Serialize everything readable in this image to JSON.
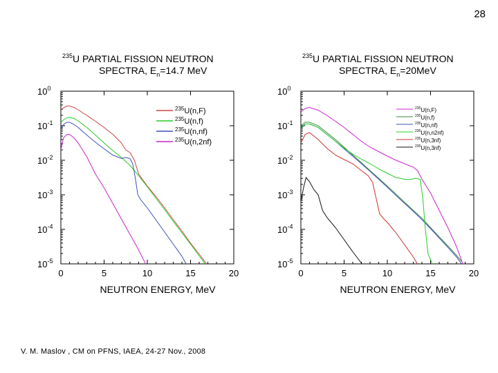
{
  "slide": {
    "number": "28"
  },
  "footer": {
    "citation": "V. M. Maslov ,   CM on PFNS, IAEA, 24-27 Nov., 2008"
  },
  "chart_data": [
    {
      "type": "line",
      "title_isotope": "235",
      "title_line1": "U PARTIAL FISSION NEUTRON",
      "title_line2": "SPECTRA,  E",
      "title_energy_sub": "n",
      "title_energy_value": "=14.7 MeV",
      "xlabel": "NEUTRON ENERGY, MeV",
      "ylabel": "",
      "x_ticks": [
        "0",
        "5",
        "10",
        "15",
        "20"
      ],
      "y_tick_exponents": [
        "0",
        "-1",
        "-2",
        "-3",
        "-4",
        "-5"
      ],
      "xlim": [
        0,
        20
      ],
      "ylim_log10": [
        -5,
        0
      ],
      "legend_position": "top-right",
      "series": [
        {
          "name": "235U(n,F)",
          "label_iso": "235",
          "label_rest": "U(n,F)",
          "color": "#d04040",
          "points": [
            [
              0,
              -0.55
            ],
            [
              0.3,
              -0.48
            ],
            [
              0.7,
              -0.43
            ],
            [
              1,
              -0.43
            ],
            [
              1.5,
              -0.47
            ],
            [
              2,
              -0.54
            ],
            [
              3,
              -0.7
            ],
            [
              4,
              -0.87
            ],
            [
              5,
              -1.05
            ],
            [
              6,
              -1.25
            ],
            [
              7,
              -1.5
            ],
            [
              7.5,
              -1.7
            ],
            [
              8,
              -1.78
            ],
            [
              8.5,
              -2.0
            ],
            [
              9,
              -2.4
            ],
            [
              10,
              -2.75
            ],
            [
              11,
              -3.05
            ],
            [
              12,
              -3.38
            ],
            [
              13,
              -3.72
            ],
            [
              14,
              -4.05
            ],
            [
              15,
              -4.4
            ],
            [
              16,
              -4.72
            ],
            [
              17,
              -5.05
            ]
          ]
        },
        {
          "name": "235U(n,f)",
          "label_iso": "235",
          "label_rest": "U(n,f)",
          "color": "#22cc22",
          "points": [
            [
              0,
              -0.9
            ],
            [
              0.3,
              -0.83
            ],
            [
              0.7,
              -0.77
            ],
            [
              1,
              -0.76
            ],
            [
              1.5,
              -0.79
            ],
            [
              2,
              -0.86
            ],
            [
              3,
              -1.05
            ],
            [
              4,
              -1.27
            ],
            [
              5,
              -1.5
            ],
            [
              6,
              -1.72
            ],
            [
              7,
              -1.92
            ],
            [
              8,
              -2.15
            ],
            [
              9,
              -2.45
            ],
            [
              10,
              -2.77
            ],
            [
              11,
              -3.1
            ],
            [
              12,
              -3.43
            ],
            [
              13,
              -3.77
            ],
            [
              14,
              -4.1
            ],
            [
              15,
              -4.43
            ],
            [
              16,
              -4.77
            ],
            [
              17,
              -5.1
            ]
          ]
        },
        {
          "name": "235U(n,nf)",
          "label_iso": "235",
          "label_rest": "U(n,nf)",
          "color": "#3a4fb8",
          "points": [
            [
              0,
              -1.1
            ],
            [
              0.3,
              -0.97
            ],
            [
              0.7,
              -0.9
            ],
            [
              1,
              -0.9
            ],
            [
              1.5,
              -0.96
            ],
            [
              2,
              -1.05
            ],
            [
              3,
              -1.27
            ],
            [
              4,
              -1.48
            ],
            [
              5,
              -1.67
            ],
            [
              6,
              -1.85
            ],
            [
              7,
              -1.95
            ],
            [
              7.5,
              -1.92
            ],
            [
              8,
              -1.95
            ],
            [
              8.3,
              -2.1
            ],
            [
              8.6,
              -2.5
            ],
            [
              8.9,
              -3.0
            ],
            [
              9.2,
              -3.13
            ],
            [
              10,
              -3.38
            ],
            [
              11,
              -3.73
            ],
            [
              12,
              -4.08
            ],
            [
              13,
              -4.43
            ],
            [
              14,
              -4.78
            ],
            [
              14.6,
              -5.05
            ]
          ]
        },
        {
          "name": "235U(n,2nf)",
          "label_iso": "235",
          "label_rest": "U(n,2nf)",
          "color": "#cc22cc",
          "points": [
            [
              0,
              -1.7
            ],
            [
              0.3,
              -1.35
            ],
            [
              0.7,
              -1.25
            ],
            [
              1,
              -1.25
            ],
            [
              1.5,
              -1.35
            ],
            [
              2,
              -1.5
            ],
            [
              2.5,
              -1.7
            ],
            [
              3,
              -1.9
            ],
            [
              3.5,
              -2.15
            ],
            [
              4,
              -2.4
            ],
            [
              5,
              -2.8
            ],
            [
              6,
              -3.25
            ],
            [
              7,
              -3.7
            ],
            [
              8,
              -4.15
            ],
            [
              9,
              -4.6
            ],
            [
              9.9,
              -5.05
            ]
          ]
        }
      ]
    },
    {
      "type": "line",
      "title_isotope": "235",
      "title_line1": "U PARTIAL FISSION NEUTRON",
      "title_line2": "SPECTRA,  E",
      "title_energy_sub": "n",
      "title_energy_value": "=20MeV",
      "xlabel": "NEUTRON ENERGY, MeV",
      "ylabel": "",
      "x_ticks": [
        "0",
        "5",
        "10",
        "15",
        "20"
      ],
      "y_tick_exponents": [
        "0",
        "-1",
        "-2",
        "-3",
        "-4",
        "-5"
      ],
      "xlim": [
        0,
        20
      ],
      "ylim_log10": [
        -5,
        0
      ],
      "legend_position": "top-right",
      "series": [
        {
          "name": "235U(n,F)",
          "label_iso": "235",
          "label_rest": "U(n,F)",
          "color": "#cc22cc",
          "points": [
            [
              0,
              -0.6
            ],
            [
              0.5,
              -0.5
            ],
            [
              1,
              -0.47
            ],
            [
              2,
              -0.55
            ],
            [
              3,
              -0.7
            ],
            [
              4,
              -0.87
            ],
            [
              5,
              -1.05
            ],
            [
              6,
              -1.25
            ],
            [
              7,
              -1.45
            ],
            [
              8,
              -1.62
            ],
            [
              9,
              -1.75
            ],
            [
              10,
              -1.88
            ],
            [
              11,
              -2.0
            ],
            [
              12,
              -2.1
            ],
            [
              13,
              -2.2
            ],
            [
              13.5,
              -2.3
            ],
            [
              14,
              -2.55
            ],
            [
              15,
              -2.95
            ],
            [
              16,
              -3.45
            ],
            [
              17,
              -3.95
            ],
            [
              18,
              -4.5
            ],
            [
              18.8,
              -5.05
            ]
          ]
        },
        {
          "name": "235U(n,f)",
          "label_iso": "235",
          "label_rest": "U(n,f)",
          "color": "#3a8a3a",
          "points": [
            [
              0,
              -1.0
            ],
            [
              0.5,
              -0.9
            ],
            [
              1,
              -0.9
            ],
            [
              2,
              -1.0
            ],
            [
              3,
              -1.2
            ],
            [
              4,
              -1.4
            ],
            [
              5,
              -1.62
            ],
            [
              6,
              -1.85
            ],
            [
              7,
              -2.07
            ],
            [
              8,
              -2.3
            ],
            [
              9,
              -2.52
            ],
            [
              10,
              -2.75
            ],
            [
              11,
              -2.98
            ],
            [
              12,
              -3.22
            ],
            [
              13,
              -3.45
            ],
            [
              14,
              -3.68
            ],
            [
              15,
              -3.95
            ],
            [
              16,
              -4.22
            ],
            [
              17,
              -4.48
            ],
            [
              18,
              -4.75
            ],
            [
              18.6,
              -4.93
            ]
          ]
        },
        {
          "name": "235U(n,nf)",
          "label_iso": "235",
          "label_rest": "U(n,nf)",
          "color": "#3a4fb8",
          "points": [
            [
              0,
              -1.05
            ],
            [
              0.5,
              -0.95
            ],
            [
              1,
              -0.95
            ],
            [
              2,
              -1.05
            ],
            [
              3,
              -1.25
            ],
            [
              4,
              -1.45
            ],
            [
              5,
              -1.67
            ],
            [
              6,
              -1.88
            ],
            [
              7,
              -2.1
            ],
            [
              8,
              -2.32
            ],
            [
              9,
              -2.55
            ],
            [
              10,
              -2.78
            ],
            [
              11,
              -3.02
            ],
            [
              12,
              -3.25
            ],
            [
              13,
              -3.48
            ],
            [
              14,
              -3.72
            ],
            [
              15,
              -3.98
            ],
            [
              16,
              -4.25
            ],
            [
              17,
              -4.52
            ],
            [
              18,
              -4.8
            ],
            [
              18.6,
              -5.0
            ]
          ]
        },
        {
          "name": "235U(n,n2nf)",
          "label_iso": "235",
          "label_rest": "U(n,n2nf)",
          "color": "#22cc22",
          "points": [
            [
              0,
              -1.1
            ],
            [
              0.5,
              -0.95
            ],
            [
              1,
              -0.95
            ],
            [
              2,
              -1.05
            ],
            [
              3,
              -1.25
            ],
            [
              4,
              -1.45
            ],
            [
              5,
              -1.65
            ],
            [
              6,
              -1.82
            ],
            [
              7,
              -1.97
            ],
            [
              8,
              -2.1
            ],
            [
              9,
              -2.25
            ],
            [
              10,
              -2.38
            ],
            [
              11,
              -2.5
            ],
            [
              12,
              -2.55
            ],
            [
              12.8,
              -2.55
            ],
            [
              13.3,
              -2.52
            ],
            [
              13.8,
              -2.55
            ],
            [
              14.1,
              -3.1
            ],
            [
              14.4,
              -4.0
            ],
            [
              14.7,
              -4.7
            ],
            [
              15.2,
              -5.0
            ],
            [
              15.7,
              -5.05
            ]
          ]
        },
        {
          "name": "235U(n,3nf)",
          "label_iso": "235",
          "label_rest": "U(n,3nf)",
          "color": "#cc3030",
          "points": [
            [
              0,
              -1.5
            ],
            [
              0.5,
              -1.25
            ],
            [
              1,
              -1.2
            ],
            [
              2,
              -1.4
            ],
            [
              3,
              -1.65
            ],
            [
              4,
              -1.85
            ],
            [
              5,
              -1.98
            ],
            [
              6,
              -2.1
            ],
            [
              7,
              -2.3
            ],
            [
              7.8,
              -2.45
            ],
            [
              8.3,
              -2.65
            ],
            [
              8.7,
              -3.1
            ],
            [
              9.1,
              -3.55
            ],
            [
              9.6,
              -3.7
            ],
            [
              10,
              -3.8
            ],
            [
              11,
              -4.1
            ],
            [
              12,
              -4.45
            ],
            [
              13,
              -4.8
            ],
            [
              13.6,
              -5.05
            ]
          ]
        },
        {
          "name": "235U(n,3nf)",
          "label_iso": "235",
          "label_rest": "U(n,3nf)",
          "color": "#111111",
          "points": [
            [
              0,
              -3.2
            ],
            [
              0.3,
              -2.8
            ],
            [
              0.6,
              -2.5
            ],
            [
              1,
              -2.62
            ],
            [
              1.5,
              -2.85
            ],
            [
              2,
              -3.0
            ],
            [
              2.5,
              -3.45
            ],
            [
              3,
              -3.65
            ],
            [
              4,
              -3.95
            ],
            [
              5,
              -4.3
            ],
            [
              6,
              -4.65
            ],
            [
              7,
              -4.98
            ],
            [
              7.2,
              -5.05
            ]
          ]
        }
      ]
    }
  ]
}
